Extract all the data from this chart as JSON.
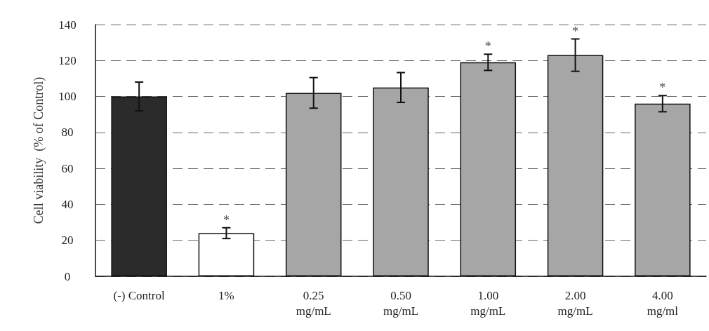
{
  "chart_data": {
    "type": "bar",
    "ylabel": "Cell viability  (% of Control)",
    "categories": [
      "(-) Control",
      "1%",
      "0.25\nmg/mL",
      "0.50\nmg/mL",
      "1.00\nmg/mL",
      "2.00\nmg/mL",
      "4.00\nmg/ml"
    ],
    "values": [
      100,
      24,
      102,
      105,
      119,
      123,
      96
    ],
    "errors": [
      8,
      3,
      8.5,
      8.3,
      4.5,
      9,
      4.5
    ],
    "colors": [
      "#2b2b2b",
      "#ffffff",
      "#a6a6a6",
      "#a6a6a6",
      "#a6a6a6",
      "#a6a6a6",
      "#a6a6a6"
    ],
    "ylim": [
      0,
      140
    ],
    "yticks": [
      0,
      20,
      40,
      60,
      80,
      100,
      120,
      140
    ],
    "grid": "y",
    "annotations": [
      {
        "text": "*",
        "x": "1%",
        "y": 24
      },
      {
        "text": "*",
        "x": "1.00\nmg/mL",
        "y": 119
      },
      {
        "text": "*",
        "x": "2.00\nmg/mL",
        "y": 123
      },
      {
        "text": "*",
        "x": "4.00\nmg/ml",
        "y": 96
      }
    ]
  }
}
